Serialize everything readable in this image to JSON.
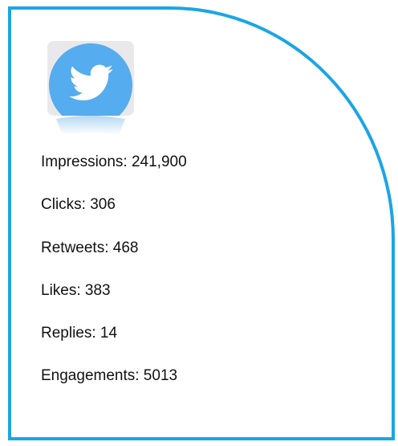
{
  "stats": [
    "Impressions: 241,900",
    "Clicks: 306",
    "Retweets: 468",
    "Likes: 383",
    "Replies: 14",
    "Engagements: 5013"
  ]
}
